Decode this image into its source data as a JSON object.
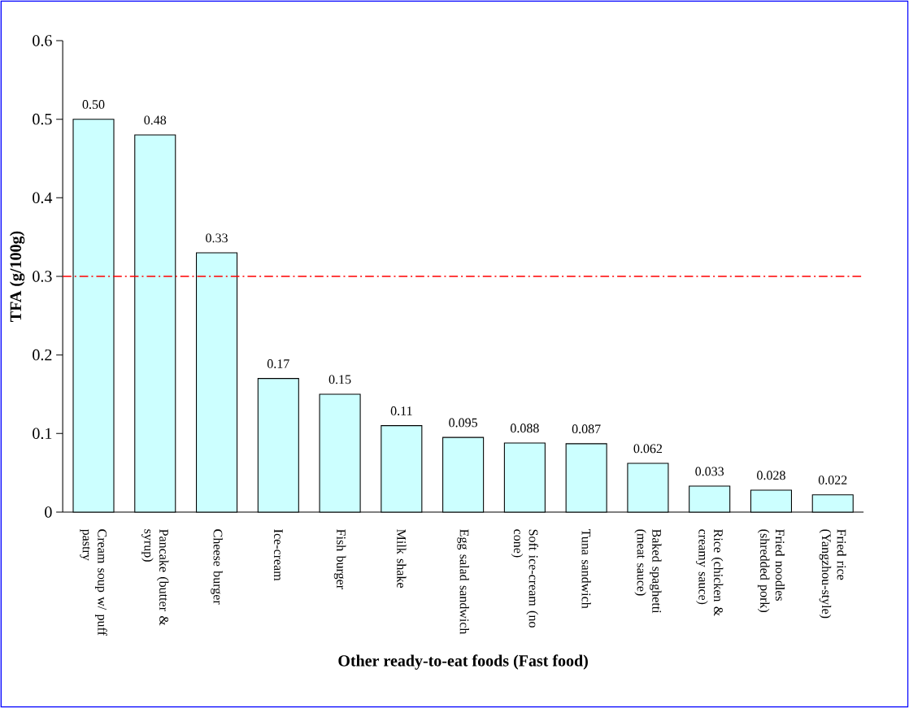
{
  "chart_data": {
    "type": "bar",
    "xlabel": "Other ready-to-eat foods (Fast food)",
    "ylabel": "TFA (g/100g)",
    "categories": [
      "Cream soup w/ puff pastry",
      "Pancake (butter & syrup)",
      "Cheese burger",
      "Ice-cream",
      "Fish burger",
      "Milk shake",
      "Egg salad sandwich",
      "Soft ice-cream (no cone)",
      "Tuna sandwich",
      "Baked spaghetti (meat sauce)",
      "Rice (chicken & creamy sauce)",
      "Fried noodles (shredded pork)",
      "Fried rice (Yangzhou-style)"
    ],
    "values": [
      0.5,
      0.48,
      0.33,
      0.17,
      0.15,
      0.11,
      0.095,
      0.088,
      0.087,
      0.062,
      0.033,
      0.028,
      0.022
    ],
    "value_labels": [
      "0.50",
      "0.48",
      "0.33",
      "0.17",
      "0.15",
      "0.11",
      "0.095",
      "0.088",
      "0.087",
      "0.062",
      "0.033",
      "0.028",
      "0.022"
    ],
    "color": "#ccffff",
    "ylim": [
      0,
      0.6
    ],
    "yticks": [
      {
        "value": 0,
        "label": "0"
      },
      0.1,
      0.2,
      0.3,
      0.4,
      0.5,
      0.6
    ],
    "ref_lines": [
      {
        "axis": "y",
        "value": 0.3,
        "color": "#ff0000",
        "line_style": "dashdot"
      }
    ],
    "grid": false,
    "legend": false
  }
}
